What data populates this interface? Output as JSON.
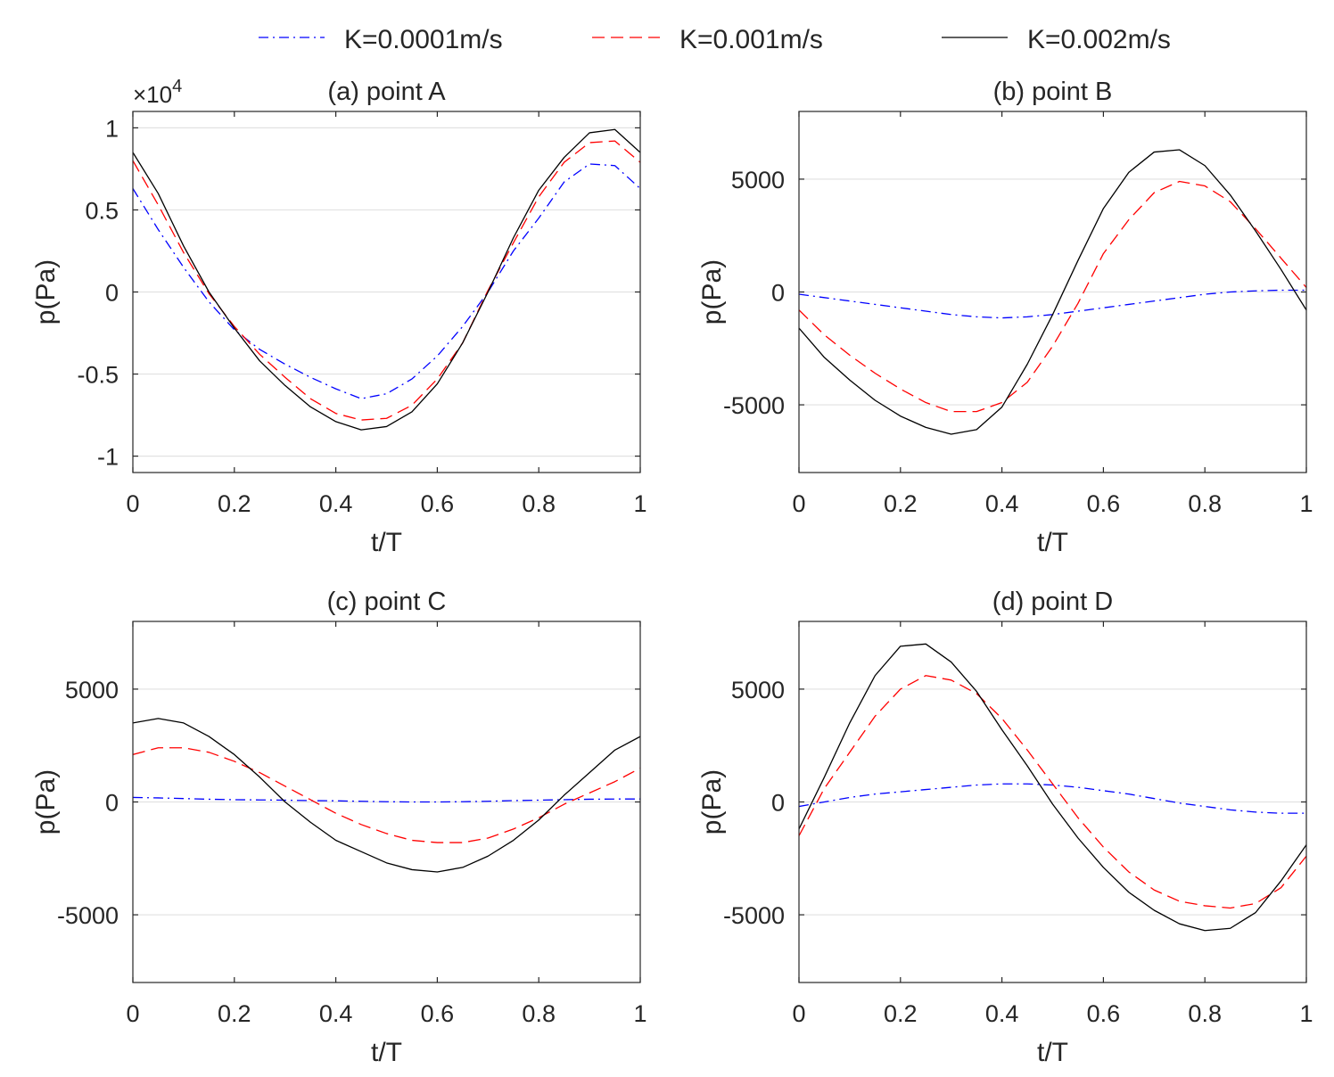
{
  "legend": [
    {
      "label": "K=0.0001m/s",
      "color": "#0000ff",
      "dash": "dashdot"
    },
    {
      "label": "K=0.001m/s",
      "color": "#ff0000",
      "dash": "dashed"
    },
    {
      "label": "K=0.002m/s",
      "color": "#000000",
      "dash": "solid"
    }
  ],
  "chart_data": [
    {
      "type": "line",
      "title": "(a) point A",
      "xlabel": "t/T",
      "ylabel": "p(Pa)",
      "xlim": [
        0,
        1
      ],
      "ylim": [
        -11000,
        11000
      ],
      "xticks": [
        0,
        0.2,
        0.4,
        0.6,
        0.8,
        1
      ],
      "xtick_labels": [
        "0",
        "0.2",
        "0.4",
        "0.6",
        "0.8",
        "1"
      ],
      "yticks": [
        -10000,
        -5000,
        0,
        5000,
        10000
      ],
      "ytick_labels": [
        "-1",
        "-0.5",
        "0",
        "0.5",
        "1"
      ],
      "exponent": {
        "prefix": "×10",
        "power": "4"
      },
      "x": [
        0,
        0.05,
        0.1,
        0.15,
        0.2,
        0.25,
        0.3,
        0.35,
        0.4,
        0.45,
        0.5,
        0.55,
        0.6,
        0.65,
        0.7,
        0.75,
        0.8,
        0.85,
        0.9,
        0.95,
        1
      ],
      "series": [
        {
          "name": "K=0.0001m/s",
          "values": [
            6300,
            3800,
            1500,
            -600,
            -2300,
            -3500,
            -4400,
            -5200,
            -5900,
            -6500,
            -6200,
            -5300,
            -3900,
            -2100,
            0,
            2500,
            4500,
            6700,
            7800,
            7700,
            6300
          ]
        },
        {
          "name": "K=0.001m/s",
          "values": [
            8000,
            5300,
            2400,
            -100,
            -2100,
            -3800,
            -5200,
            -6500,
            -7400,
            -7800,
            -7700,
            -6900,
            -5300,
            -3100,
            100,
            3000,
            5800,
            7900,
            9100,
            9200,
            7900
          ]
        },
        {
          "name": "K=0.002m/s",
          "values": [
            8500,
            6000,
            2800,
            0,
            -2200,
            -4200,
            -5700,
            -7000,
            -7900,
            -8400,
            -8200,
            -7300,
            -5600,
            -3100,
            0,
            3300,
            6200,
            8200,
            9700,
            9900,
            8500
          ]
        }
      ]
    },
    {
      "type": "line",
      "title": "(b) point B",
      "xlabel": "t/T",
      "ylabel": "p(Pa)",
      "xlim": [
        0,
        1
      ],
      "ylim": [
        -8000,
        8000
      ],
      "xticks": [
        0,
        0.2,
        0.4,
        0.6,
        0.8,
        1
      ],
      "xtick_labels": [
        "0",
        "0.2",
        "0.4",
        "0.6",
        "0.8",
        "1"
      ],
      "yticks": [
        -5000,
        0,
        5000
      ],
      "ytick_labels": [
        "-5000",
        "0",
        "5000"
      ],
      "x": [
        0,
        0.05,
        0.1,
        0.15,
        0.2,
        0.25,
        0.3,
        0.35,
        0.4,
        0.45,
        0.5,
        0.55,
        0.6,
        0.65,
        0.7,
        0.75,
        0.8,
        0.85,
        0.9,
        0.95,
        1
      ],
      "series": [
        {
          "name": "K=0.0001m/s",
          "values": [
            -100,
            -250,
            -400,
            -550,
            -700,
            -850,
            -1000,
            -1100,
            -1150,
            -1100,
            -1000,
            -850,
            -700,
            -550,
            -400,
            -250,
            -100,
            0,
            50,
            80,
            80
          ]
        },
        {
          "name": "K=0.001m/s",
          "values": [
            -800,
            -1900,
            -2800,
            -3600,
            -4300,
            -4900,
            -5300,
            -5300,
            -4900,
            -4000,
            -2400,
            -500,
            1700,
            3200,
            4400,
            4900,
            4700,
            4000,
            2800,
            1500,
            200
          ]
        },
        {
          "name": "K=0.002m/s",
          "values": [
            -1600,
            -2900,
            -3900,
            -4800,
            -5500,
            -6000,
            -6300,
            -6100,
            -5100,
            -3200,
            -1000,
            1400,
            3700,
            5300,
            6200,
            6300,
            5600,
            4300,
            2700,
            1000,
            -800
          ]
        }
      ]
    },
    {
      "type": "line",
      "title": "(c) point C",
      "xlabel": "t/T",
      "ylabel": "p(Pa)",
      "xlim": [
        0,
        1
      ],
      "ylim": [
        -8000,
        8000
      ],
      "xticks": [
        0,
        0.2,
        0.4,
        0.6,
        0.8,
        1
      ],
      "xtick_labels": [
        "0",
        "0.2",
        "0.4",
        "0.6",
        "0.8",
        "1"
      ],
      "yticks": [
        -5000,
        0,
        5000
      ],
      "ytick_labels": [
        "-5000",
        "0",
        "5000"
      ],
      "x": [
        0,
        0.05,
        0.1,
        0.15,
        0.2,
        0.25,
        0.3,
        0.35,
        0.4,
        0.45,
        0.5,
        0.55,
        0.6,
        0.65,
        0.7,
        0.75,
        0.8,
        0.85,
        0.9,
        0.95,
        1
      ],
      "series": [
        {
          "name": "K=0.0001m/s",
          "values": [
            200,
            180,
            150,
            120,
            100,
            90,
            80,
            60,
            50,
            30,
            10,
            0,
            0,
            10,
            30,
            60,
            80,
            100,
            120,
            130,
            130
          ]
        },
        {
          "name": "K=0.001m/s",
          "values": [
            2100,
            2400,
            2400,
            2200,
            1800,
            1300,
            700,
            100,
            -500,
            -1000,
            -1400,
            -1700,
            -1800,
            -1800,
            -1600,
            -1200,
            -700,
            -100,
            400,
            900,
            1500
          ]
        },
        {
          "name": "K=0.002m/s",
          "values": [
            3500,
            3700,
            3500,
            2900,
            2100,
            1100,
            0,
            -900,
            -1700,
            -2200,
            -2700,
            -3000,
            -3100,
            -2900,
            -2400,
            -1700,
            -800,
            300,
            1300,
            2300,
            2900
          ]
        }
      ]
    },
    {
      "type": "line",
      "title": "(d) point D",
      "xlabel": "t/T",
      "ylabel": "p(Pa)",
      "xlim": [
        0,
        1
      ],
      "ylim": [
        -8000,
        8000
      ],
      "xticks": [
        0,
        0.2,
        0.4,
        0.6,
        0.8,
        1
      ],
      "xtick_labels": [
        "0",
        "0.2",
        "0.4",
        "0.6",
        "0.8",
        "1"
      ],
      "yticks": [
        -5000,
        0,
        5000
      ],
      "ytick_labels": [
        "-5000",
        "0",
        "5000"
      ],
      "x": [
        0,
        0.05,
        0.1,
        0.15,
        0.2,
        0.25,
        0.3,
        0.35,
        0.4,
        0.45,
        0.5,
        0.55,
        0.6,
        0.65,
        0.7,
        0.75,
        0.8,
        0.85,
        0.9,
        0.95,
        1
      ],
      "series": [
        {
          "name": "K=0.0001m/s",
          "values": [
            -200,
            0,
            200,
            350,
            450,
            550,
            650,
            750,
            800,
            800,
            750,
            650,
            500,
            350,
            150,
            -50,
            -200,
            -350,
            -450,
            -500,
            -500
          ]
        },
        {
          "name": "K=0.001m/s",
          "values": [
            -1500,
            600,
            2200,
            3800,
            5000,
            5600,
            5400,
            4800,
            3700,
            2300,
            800,
            -700,
            -2000,
            -3100,
            -3900,
            -4400,
            -4600,
            -4700,
            -4500,
            -3800,
            -2400
          ]
        },
        {
          "name": "K=0.002m/s",
          "values": [
            -1200,
            1100,
            3500,
            5600,
            6900,
            7000,
            6200,
            4900,
            3200,
            1600,
            -100,
            -1600,
            -2900,
            -4000,
            -4800,
            -5400,
            -5700,
            -5600,
            -4900,
            -3500,
            -1900
          ]
        }
      ]
    }
  ]
}
